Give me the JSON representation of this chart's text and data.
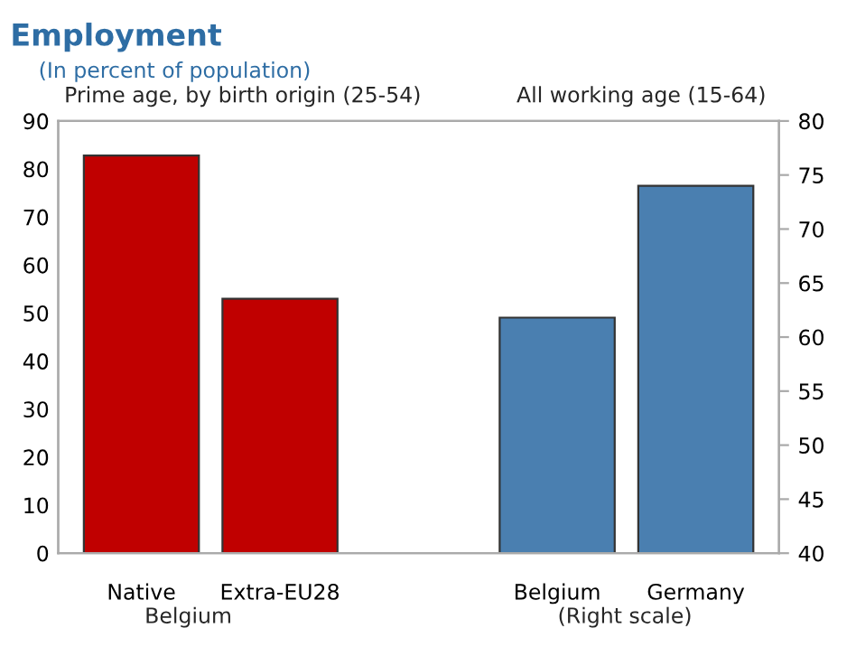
{
  "chart_data": {
    "type": "bar",
    "title": "Employment",
    "subtitle": "(In percent of population)",
    "categories": [
      "Native",
      "Extra-EU28",
      null,
      "Belgium",
      "Germany"
    ],
    "series": [
      {
        "color": "#c00000",
        "values": [
          82.8,
          53.0,
          null,
          null,
          null
        ]
      },
      {
        "color": "#4a7fb0",
        "values": [
          null,
          null,
          null,
          61.8,
          74.0
        ],
        "axis": "y2"
      }
    ],
    "ylim": [
      0,
      90
    ],
    "yticks": [
      0,
      10,
      20,
      30,
      40,
      50,
      60,
      70,
      80,
      90
    ],
    "y2lim": [
      40,
      80
    ],
    "y2ticks": [
      40,
      45,
      50,
      55,
      60,
      65,
      70,
      75,
      80
    ],
    "annotations": [
      "Prime age, by birth origin (25-54)",
      "All working age (15-64)",
      "Belgium",
      "(Right scale)"
    ],
    "grid": false,
    "legend": false
  }
}
